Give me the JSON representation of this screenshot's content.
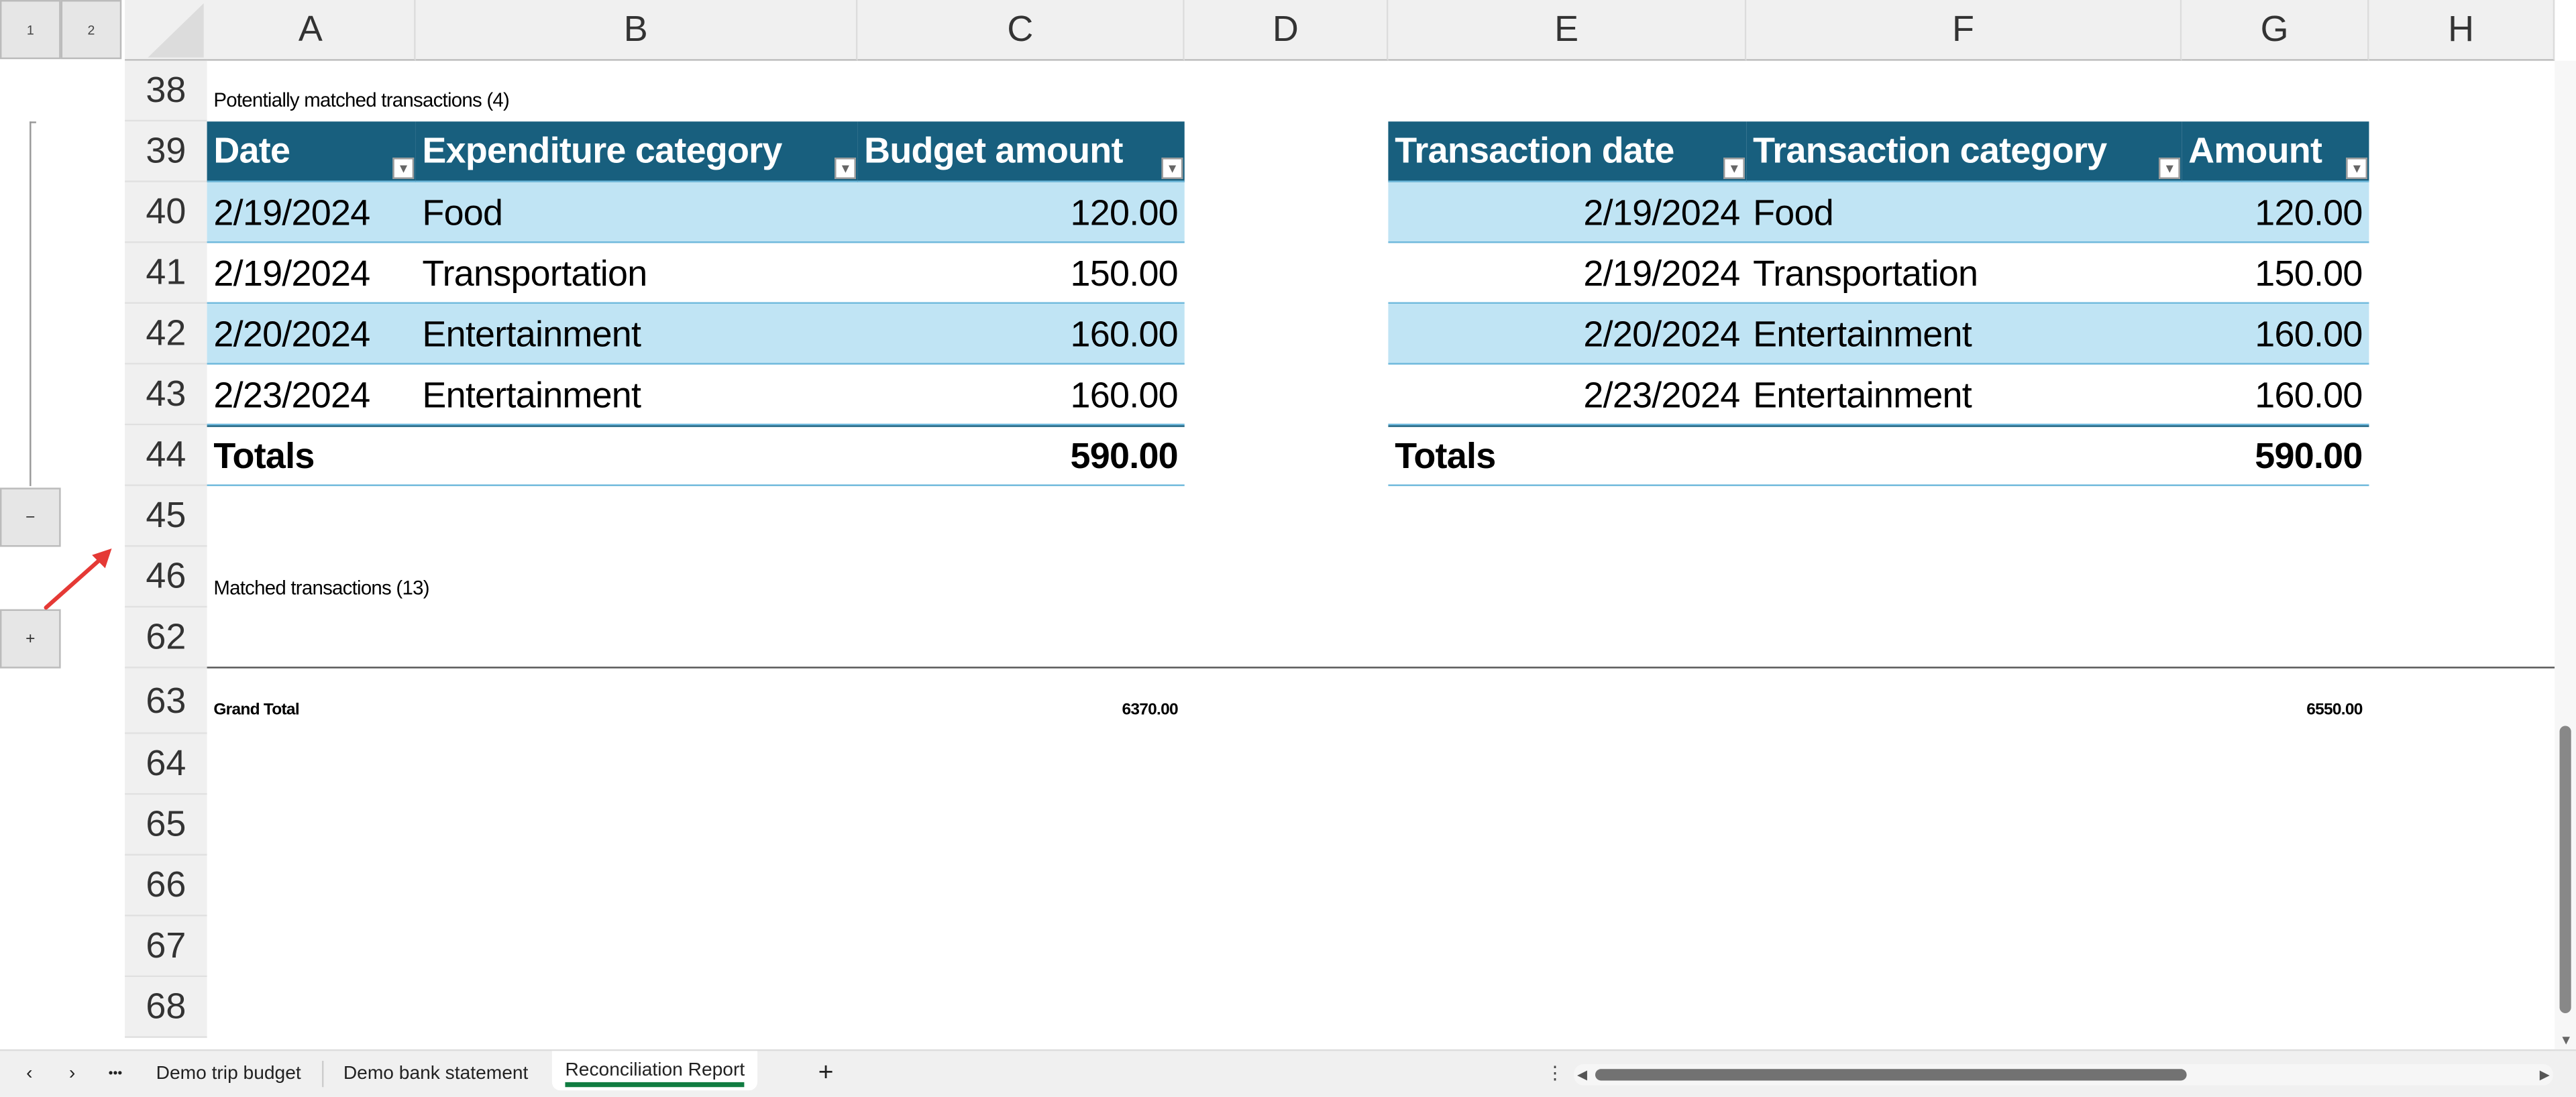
{
  "outline": {
    "levels": [
      "1",
      "2"
    ],
    "collapse_label": "−",
    "expand_label": "+"
  },
  "columns": [
    "A",
    "B",
    "C",
    "D",
    "E",
    "F",
    "G",
    "H"
  ],
  "rows": [
    "38",
    "39",
    "40",
    "41",
    "42",
    "43",
    "44",
    "45",
    "46",
    "62",
    "63",
    "64",
    "65",
    "66",
    "67",
    "68"
  ],
  "section1_label": "Potentially matched transactions (4)",
  "section2_label": "Matched transactions (13)",
  "left_table": {
    "headers": [
      "Date",
      "Expenditure category",
      "Budget amount"
    ],
    "rows": [
      [
        "2/19/2024",
        "Food",
        "120.00"
      ],
      [
        "2/19/2024",
        "Transportation",
        "150.00"
      ],
      [
        "2/20/2024",
        "Entertainment",
        "160.00"
      ],
      [
        "2/23/2024",
        "Entertainment",
        "160.00"
      ]
    ],
    "totals_label": "Totals",
    "total": "590.00"
  },
  "right_table": {
    "headers": [
      "Transaction date",
      "Transaction category",
      "Amount"
    ],
    "rows": [
      [
        "2/19/2024",
        "Food",
        "120.00"
      ],
      [
        "2/19/2024",
        "Transportation",
        "150.00"
      ],
      [
        "2/20/2024",
        "Entertainment",
        "160.00"
      ],
      [
        "2/23/2024",
        "Entertainment",
        "160.00"
      ]
    ],
    "totals_label": "Totals",
    "total": "590.00"
  },
  "grand_total": {
    "label": "Grand Total",
    "budget": "6370.00",
    "bank": "6550.00"
  },
  "sheet_tabs": {
    "prev": "‹",
    "next": "›",
    "more": "•••",
    "tabs": [
      "Demo trip budget",
      "Demo bank statement",
      "Reconciliation Report"
    ],
    "active": "Reconciliation Report",
    "add": "+"
  },
  "colors": {
    "header": "#185f7e",
    "band": "#c0e4f4",
    "active_tab": "#107c41",
    "annotation_arrow": "#e53935"
  }
}
